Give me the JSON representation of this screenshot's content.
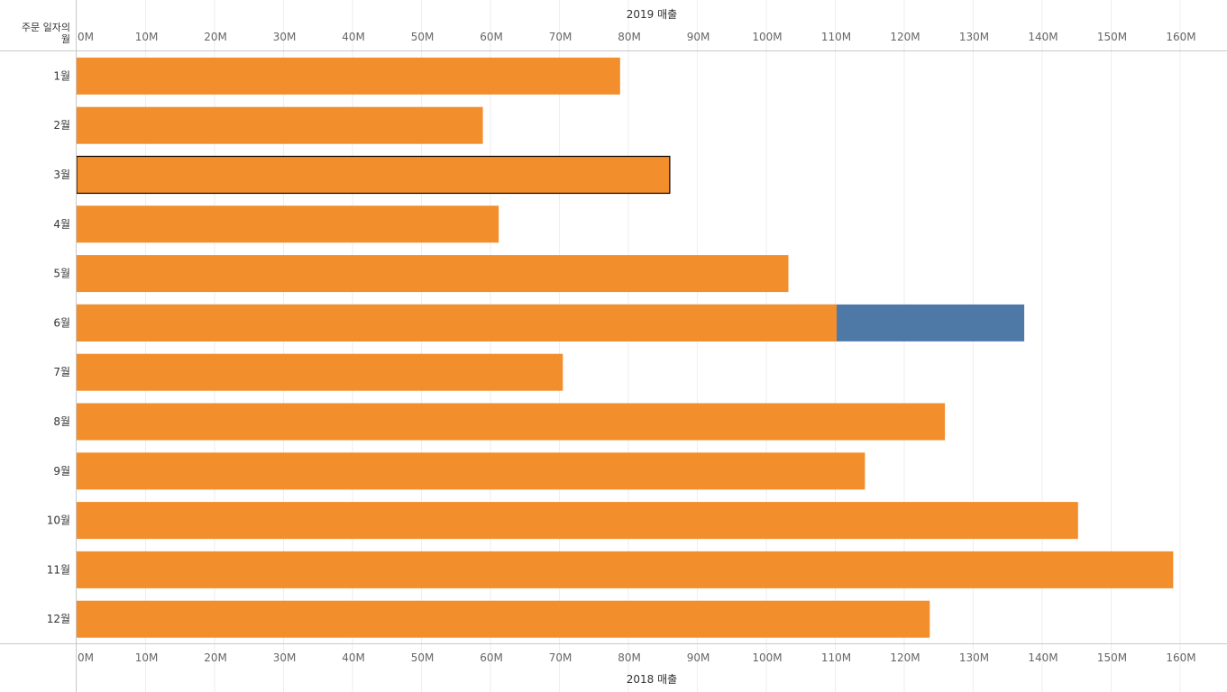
{
  "chart_data": {
    "type": "bar",
    "orientation": "horizontal",
    "row_header": [
      "주문 일자의",
      "월"
    ],
    "top_axis_title": "2019 매출",
    "bottom_axis_title": "2018 매출",
    "unit": "M",
    "xlim": [
      0,
      165
    ],
    "ticks": [
      0,
      10,
      20,
      30,
      40,
      50,
      60,
      70,
      80,
      90,
      100,
      110,
      120,
      130,
      140,
      150,
      160
    ],
    "tick_labels": [
      "0M",
      "10M",
      "20M",
      "30M",
      "40M",
      "50M",
      "60M",
      "70M",
      "80M",
      "90M",
      "100M",
      "110M",
      "120M",
      "130M",
      "140M",
      "150M",
      "160M"
    ],
    "categories": [
      "1월",
      "2월",
      "3월",
      "4월",
      "5월",
      "6월",
      "7월",
      "8월",
      "9월",
      "10월",
      "11월",
      "12월"
    ],
    "series": [
      {
        "name": "2018 매출",
        "color": "#f28e2b",
        "values": [
          78.8,
          58.9,
          86.0,
          61.2,
          103.2,
          110.2,
          70.5,
          125.9,
          114.3,
          145.2,
          159.0,
          123.7
        ]
      },
      {
        "name": "2019 매출",
        "color": "#4e79a7",
        "values": [
          null,
          null,
          null,
          null,
          null,
          137.4,
          null,
          null,
          null,
          null,
          null,
          null
        ]
      }
    ],
    "highlighted_category": "3월"
  }
}
